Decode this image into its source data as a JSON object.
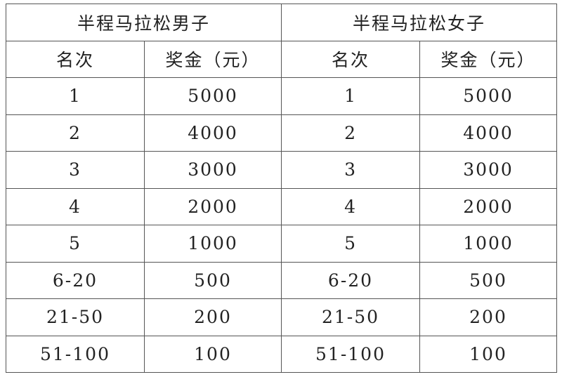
{
  "table": {
    "groups": [
      "半程马拉松男子",
      "半程马拉松女子"
    ],
    "headers": [
      "名次",
      "奖金（元）",
      "名次",
      "奖金（元）"
    ],
    "rows": [
      [
        "1",
        5000,
        "1",
        5000
      ],
      [
        "2",
        4000,
        "2",
        4000
      ],
      [
        "3",
        3000,
        "3",
        3000
      ],
      [
        "4",
        2000,
        "4",
        2000
      ],
      [
        "5",
        1000,
        "5",
        1000
      ],
      [
        "6-20",
        500,
        "6-20",
        500
      ],
      [
        "21-50",
        200,
        "21-50",
        200
      ],
      [
        "51-100",
        100,
        "51-100",
        100
      ]
    ]
  }
}
